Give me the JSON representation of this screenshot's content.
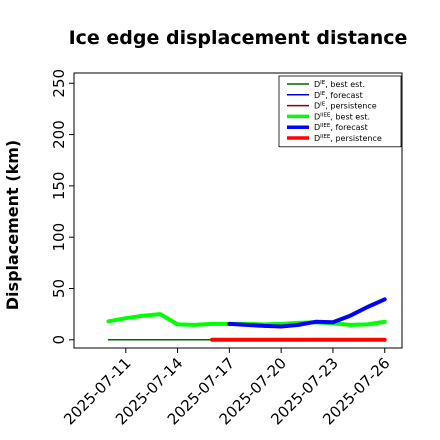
{
  "chart_data": {
    "type": "line",
    "title": "Ice edge displacement distance",
    "ylabel": "Displacement (km)",
    "xlabel": "",
    "ylim": [
      -8,
      260
    ],
    "yticks": [
      0,
      50,
      100,
      150,
      200,
      250
    ],
    "xlim": [
      "2025-07-08",
      "2025-07-27"
    ],
    "xticks": [
      "2025-07-11",
      "2025-07-14",
      "2025-07-17",
      "2025-07-20",
      "2025-07-23",
      "2025-07-26"
    ],
    "xtick_colors": [
      "#000000",
      "#000000",
      "#228B22",
      "#000000",
      "#000000",
      "#000000"
    ],
    "grid": false,
    "legend_position": "top-right",
    "series": [
      {
        "name": "D^IE, best est.",
        "legend_base": "D",
        "legend_sup": "IE",
        "legend_rest": ", best est.",
        "color": "#006400",
        "width": 1.5,
        "x": [
          "2025-07-10",
          "2025-07-11",
          "2025-07-12",
          "2025-07-13",
          "2025-07-14",
          "2025-07-15",
          "2025-07-16"
        ],
        "values": [
          0,
          0,
          0,
          0,
          0,
          0,
          0
        ]
      },
      {
        "name": "D^IE, forecast",
        "legend_base": "D",
        "legend_sup": "IE",
        "legend_rest": ", forecast",
        "color": "#0000CD",
        "width": 1.5,
        "x": [],
        "values": []
      },
      {
        "name": "D^IE, persistence",
        "legend_base": "D",
        "legend_sup": "IE",
        "legend_rest": ", persistence",
        "color": "#8B0000",
        "width": 1.5,
        "x": [],
        "values": []
      },
      {
        "name": "D^IIEE, best est.",
        "legend_base": "D",
        "legend_sup": "IIEE",
        "legend_rest": ", best est.",
        "color": "#00FF00",
        "width": 4,
        "x": [
          "2025-07-10",
          "2025-07-11",
          "2025-07-12",
          "2025-07-13",
          "2025-07-14",
          "2025-07-15",
          "2025-07-16",
          "2025-07-17",
          "2025-07-18",
          "2025-07-19",
          "2025-07-20",
          "2025-07-21",
          "2025-07-22",
          "2025-07-23",
          "2025-07-24",
          "2025-07-25",
          "2025-07-26"
        ],
        "values": [
          18,
          21,
          23.5,
          25,
          15,
          14.5,
          15.5,
          15.5,
          15.5,
          15,
          15.5,
          16.5,
          17,
          16,
          14.5,
          15,
          17.5
        ]
      },
      {
        "name": "D^IIEE, forecast",
        "legend_base": "D",
        "legend_sup": "IIEE",
        "legend_rest": ", forecast",
        "color": "#0000FF",
        "width": 4,
        "x": [
          "2025-07-17",
          "2025-07-18",
          "2025-07-19",
          "2025-07-20",
          "2025-07-21",
          "2025-07-22",
          "2025-07-23",
          "2025-07-24",
          "2025-07-25",
          "2025-07-26"
        ],
        "values": [
          15.5,
          14.5,
          13.5,
          13,
          14.5,
          17.5,
          17,
          23.5,
          32,
          39.5
        ]
      },
      {
        "name": "D^IIEE, persistence",
        "legend_base": "D",
        "legend_sup": "IIEE",
        "legend_rest": ", persistence",
        "color": "#FF0000",
        "width": 4,
        "x": [
          "2025-07-16",
          "2025-07-17",
          "2025-07-18",
          "2025-07-19",
          "2025-07-20",
          "2025-07-21",
          "2025-07-22",
          "2025-07-23",
          "2025-07-24",
          "2025-07-25",
          "2025-07-26"
        ],
        "values": [
          0,
          0,
          0,
          0,
          0,
          0,
          0,
          0,
          0,
          0,
          0
        ]
      }
    ]
  }
}
